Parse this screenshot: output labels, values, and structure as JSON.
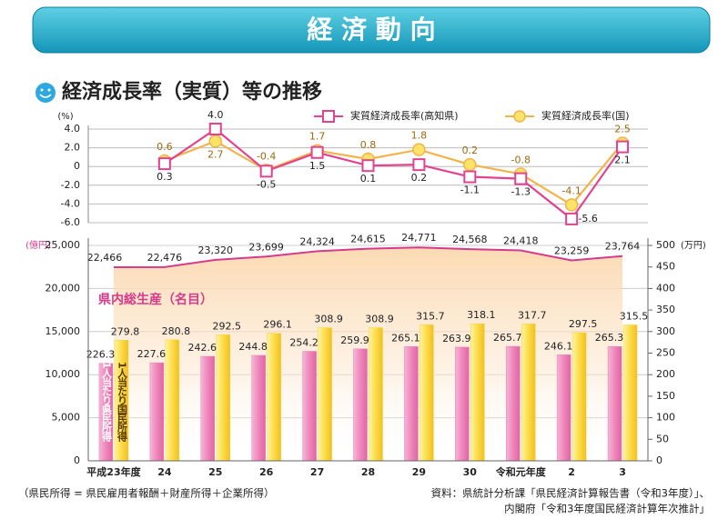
{
  "header": {
    "title": "経 済 動 向"
  },
  "chart_data": [
    {
      "type": "line",
      "title": "経済成長率（実質）等の推移",
      "yunit": "(%)",
      "ylim": [
        -6,
        4
      ],
      "yticks": [
        {
          "value": 4,
          "label": "4.0"
        },
        {
          "value": 2,
          "label": "2.0"
        },
        0,
        {
          "value": -2,
          "label": "-2.0"
        },
        {
          "value": -4,
          "label": "-4.0"
        },
        {
          "value": -6,
          "label": "-6.0"
        }
      ],
      "grid": true,
      "series": [
        {
          "name": "実質経済成長率(高知県)",
          "color": "#e2438f",
          "marker": "square",
          "values": [
            null,
            0.3,
            4.0,
            -0.5,
            1.5,
            0.1,
            0.2,
            -1.1,
            -1.3,
            -5.6,
            2.1
          ],
          "value_labels": [
            null,
            "0.3",
            "4.0",
            "-0.5",
            "1.5",
            "0.1",
            "0.2",
            "-1.1",
            "-1.3",
            "-5.6",
            "2.1"
          ]
        },
        {
          "name": "実質経済成長率(国)",
          "color": "#f2b44a",
          "marker": "circle",
          "values": [
            null,
            0.6,
            2.7,
            -0.4,
            1.7,
            0.8,
            1.8,
            0.2,
            -0.8,
            -4.1,
            2.5
          ],
          "value_labels": [
            null,
            "0.6",
            "2.7",
            "-0.4",
            "1.7",
            "0.8",
            "1.8",
            "0.2",
            "-0.8",
            "-4.1",
            "2.5"
          ]
        }
      ]
    },
    {
      "type": "combo",
      "categories": [
        "平成23年度",
        "24",
        "25",
        "26",
        "27",
        "28",
        "29",
        "30",
        "令和元年度",
        "2",
        "3"
      ],
      "yunit": "(億円)",
      "y2unit": "(万円)",
      "ylim": [
        0,
        25000
      ],
      "yticks": [
        0,
        {
          "value": 5000,
          "label": "5,000"
        },
        {
          "value": 10000,
          "label": "10,000"
        },
        {
          "value": 15000,
          "label": "15,000"
        },
        {
          "value": 20000,
          "label": "20,000"
        },
        {
          "value": 25000,
          "label": "25,000"
        }
      ],
      "y2lim": [
        0,
        500
      ],
      "y2ticks": [
        0,
        50,
        100,
        150,
        200,
        250,
        300,
        350,
        400,
        450,
        500
      ],
      "grid": true,
      "series": [
        {
          "name": "1人当たり県民所得",
          "kind": "bar",
          "axis": "y2",
          "color": "#ec7fb6",
          "values": [
            226.3,
            227.6,
            242.6,
            244.8,
            254.2,
            259.9,
            265.1,
            263.9,
            265.7,
            246.1,
            265.3
          ]
        },
        {
          "name": "1人当たり国民所得",
          "kind": "bar",
          "axis": "y2",
          "color": "#f7d238",
          "values": [
            279.8,
            280.8,
            292.5,
            296.1,
            308.9,
            308.9,
            315.7,
            318.1,
            317.7,
            297.5,
            315.5
          ]
        },
        {
          "name": "県内総生産（名目）",
          "kind": "line",
          "axis": "y",
          "color": "#d63a8c",
          "values": [
            22466,
            22476,
            23320,
            23699,
            24324,
            24615,
            24771,
            24568,
            24418,
            23259,
            23764
          ],
          "value_labels": [
            "22,466",
            "22,476",
            "23,320",
            "23,699",
            "24,324",
            "24,615",
            "24,771",
            "24,568",
            "24,418",
            "23,259",
            "23,764"
          ]
        }
      ]
    }
  ],
  "notes": {
    "formula": "（県民所得 = 県民雇用者報酬＋財産所得＋企業所得）",
    "source": [
      "資料：県統計分析課「県民経済計算報告書（令和3年度）」、",
      "内閣府「令和3年度国民経済計算年次推計」"
    ]
  }
}
